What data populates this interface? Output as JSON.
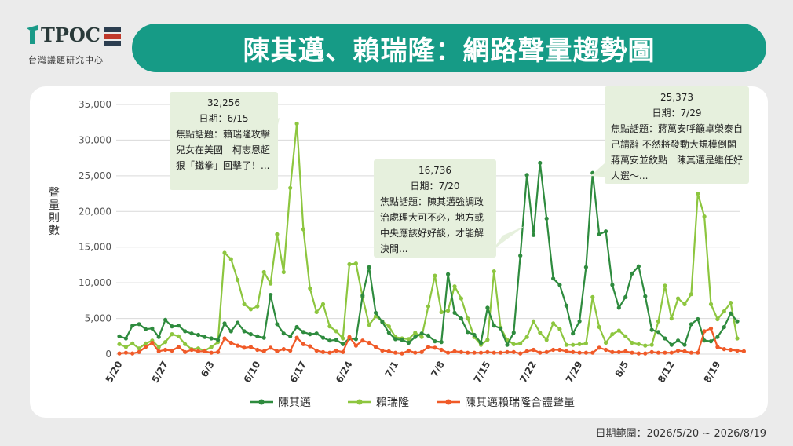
{
  "logo": {
    "text": "TPOC",
    "subtitle": "台灣議題研究中心"
  },
  "title": "陳其邁、賴瑞隆：網路聲量趨勢圖",
  "footer": "日期範圍：2026/5/20 ~ 2026/8/19",
  "colors": {
    "title_bg": "#169b86",
    "chen": "#2e8b3e",
    "lai": "#8dc63f",
    "combined": "#f05a28",
    "annotation_bg": "#e6f0dd"
  },
  "annotations": [
    {
      "value": "32,256",
      "date": "日期：6/15",
      "topic": "焦點話題：賴瑞隆攻擊兒女在美國　柯志恩超狠「鐵拳」回擊了！..."
    },
    {
      "value": "16,736",
      "date": "日期：7/20",
      "topic": "焦點話題：陳其邁強調政治處理大可不必，地方或中央應該好好談，才能解決問..."
    },
    {
      "value": "25,373",
      "date": "日期：7/29",
      "topic": "焦點話題：蔣萬安呼籲卓榮泰自己請辭 不然將發動大規模倒閣　蔣萬安並欽點　陳其邁是繼任好人選〜..."
    }
  ],
  "chart_data": {
    "type": "line",
    "ylabel": "聲量則數",
    "ylim": [
      0,
      35000
    ],
    "yticks": [
      "0",
      "5,000",
      "10,000",
      "15,000",
      "20,000",
      "25,000",
      "30,000",
      "35,000"
    ],
    "xtick_labels": [
      "5/20",
      "5/27",
      "6/3",
      "6/10",
      "6/17",
      "6/24",
      "7/1",
      "7/8",
      "7/15",
      "7/22",
      "7/29",
      "8/5",
      "8/12",
      "8/19"
    ],
    "series": [
      {
        "name": "陳其邁",
        "values": [
          2500,
          2200,
          4000,
          4200,
          3500,
          3600,
          2400,
          4800,
          3900,
          4000,
          3200,
          2900,
          2700,
          2400,
          2200,
          2000,
          4300,
          3200,
          4400,
          3200,
          2800,
          2500,
          2300,
          8300,
          4200,
          2900,
          2500,
          3800,
          3100,
          2800,
          2900,
          2300,
          1900,
          2000,
          1400,
          2200,
          2100,
          8200,
          12200,
          5800,
          4500,
          3000,
          2100,
          2000,
          1600,
          2400,
          2900,
          2600,
          1800,
          1700,
          11200,
          5800,
          5000,
          3100,
          2700,
          1600,
          6500,
          4000,
          3600,
          1300,
          3000,
          13800,
          25100,
          16700,
          26800,
          19000,
          10600,
          9700,
          6800,
          2900,
          4600,
          12200,
          25400,
          16800,
          17200,
          9700,
          6500,
          8000,
          11300,
          12300,
          8100,
          3400,
          3100,
          2200,
          1300,
          1900,
          1300,
          4200,
          4900,
          1900,
          1800,
          2400,
          3800,
          5700,
          4600
        ]
      },
      {
        "name": "賴瑞隆",
        "values": [
          1400,
          1000,
          1500,
          800,
          1500,
          1900,
          1000,
          1700,
          2800,
          2500,
          1400,
          700,
          800,
          500,
          1000,
          1700,
          14200,
          13300,
          10400,
          7000,
          6300,
          6700,
          11500,
          9900,
          16800,
          11500,
          23300,
          32300,
          17500,
          9200,
          5900,
          7000,
          3900,
          3200,
          2200,
          12600,
          12700,
          8000,
          4100,
          5300,
          4600,
          3900,
          2400,
          2200,
          2100,
          3000,
          2400,
          6700,
          11000,
          5900,
          6100,
          9500,
          7800,
          5000,
          2400,
          1300,
          2000,
          11600,
          3700,
          2000,
          1400,
          1500,
          2400,
          4600,
          3000,
          2000,
          4300,
          3500,
          1300,
          1300,
          1400,
          1500,
          8000,
          3800,
          1600,
          2800,
          3300,
          2500,
          1600,
          1400,
          1200,
          1300,
          4600,
          9600,
          5000,
          7800,
          7000,
          8400,
          22500,
          19300,
          7000,
          4900,
          6000,
          7200,
          2200
        ]
      },
      {
        "name": "陳其邁賴瑞隆合體聲量",
        "values": [
          100,
          200,
          100,
          300,
          1000,
          1600,
          400,
          600,
          500,
          1000,
          300,
          600,
          400,
          400,
          200,
          300,
          2200,
          1600,
          1200,
          900,
          1000,
          600,
          400,
          900,
          400,
          700,
          500,
          2300,
          1400,
          1100,
          500,
          300,
          200,
          500,
          300,
          2400,
          1200,
          1900,
          1600,
          1000,
          500,
          400,
          200,
          100,
          500,
          200,
          300,
          1000,
          900,
          600,
          200,
          400,
          300,
          200,
          200,
          200,
          300,
          200,
          200,
          300,
          300,
          100,
          400,
          600,
          200,
          300,
          600,
          600,
          400,
          300,
          200,
          200,
          200,
          900,
          600,
          300,
          300,
          400,
          200,
          100,
          100,
          300,
          200,
          200,
          200,
          500,
          400,
          200,
          200,
          3200,
          3600,
          1000,
          700,
          600,
          500,
          400
        ]
      }
    ]
  }
}
